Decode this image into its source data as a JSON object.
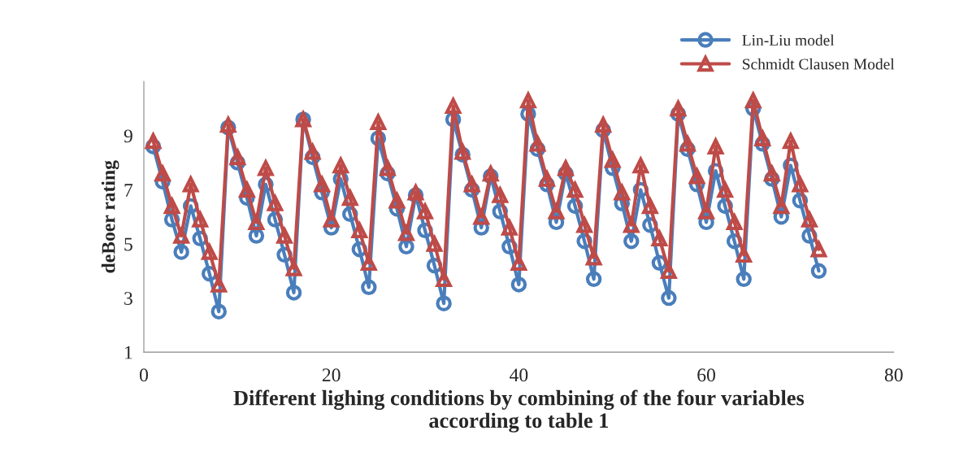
{
  "chart_data": {
    "type": "line",
    "xlabel": "Different lighing conditions by combining of the four variables\naccording to table 1",
    "ylabel": "deBoer rating",
    "x": [
      1,
      2,
      3,
      4,
      5,
      6,
      7,
      8,
      9,
      10,
      11,
      12,
      13,
      14,
      15,
      16,
      17,
      18,
      19,
      20,
      21,
      22,
      23,
      24,
      25,
      26,
      27,
      28,
      29,
      30,
      31,
      32,
      33,
      34,
      35,
      36,
      37,
      38,
      39,
      40,
      41,
      42,
      43,
      44,
      45,
      46,
      47,
      48,
      49,
      50,
      51,
      52,
      53,
      54,
      55,
      56,
      57,
      58,
      59,
      60,
      61,
      62,
      63,
      64,
      65,
      66,
      67,
      68,
      69,
      70,
      71,
      72
    ],
    "series": [
      {
        "name": "Lin-Liu model",
        "color": "#4a7ebb",
        "marker": "circle",
        "values": [
          8.6,
          7.3,
          5.9,
          4.7,
          6.4,
          5.2,
          3.9,
          2.5,
          9.3,
          8.0,
          6.7,
          5.3,
          7.2,
          5.9,
          4.6,
          3.2,
          9.6,
          8.2,
          6.9,
          5.6,
          7.4,
          6.1,
          4.8,
          3.4,
          8.9,
          7.6,
          6.3,
          4.9,
          6.8,
          5.5,
          4.2,
          2.8,
          9.6,
          8.3,
          7.0,
          5.6,
          7.5,
          6.2,
          4.9,
          3.5,
          9.8,
          8.5,
          7.2,
          5.8,
          7.6,
          6.4,
          5.1,
          3.7,
          9.2,
          7.8,
          6.5,
          5.1,
          7.0,
          5.7,
          4.3,
          3.0,
          9.8,
          8.5,
          7.2,
          5.8,
          7.7,
          6.4,
          5.1,
          3.7,
          10.0,
          8.7,
          7.4,
          6.0,
          7.9,
          6.6,
          5.3,
          4.0
        ]
      },
      {
        "name": "Schmidt Clausen Model",
        "color": "#be4b48",
        "marker": "triangle",
        "values": [
          8.8,
          7.6,
          6.4,
          5.3,
          7.2,
          5.9,
          4.7,
          3.5,
          9.4,
          8.2,
          7.0,
          5.8,
          7.8,
          6.5,
          5.3,
          4.1,
          9.6,
          8.4,
          7.2,
          5.9,
          7.9,
          6.7,
          5.5,
          4.3,
          9.5,
          7.8,
          6.6,
          5.4,
          6.9,
          6.2,
          5.0,
          3.7,
          10.1,
          8.4,
          7.2,
          6.0,
          7.6,
          6.8,
          5.6,
          4.3,
          10.3,
          8.7,
          7.4,
          6.2,
          7.8,
          7.0,
          5.7,
          4.5,
          9.4,
          8.1,
          6.9,
          5.7,
          7.9,
          6.4,
          5.2,
          4.0,
          10.0,
          8.7,
          7.5,
          6.2,
          8.6,
          7.0,
          5.8,
          4.6,
          10.3,
          8.9,
          7.6,
          6.4,
          8.8,
          7.2,
          5.9,
          4.8
        ]
      }
    ],
    "xlim": [
      0,
      80
    ],
    "xticks": [
      0,
      20,
      40,
      60,
      80
    ],
    "ylim": [
      1,
      11
    ],
    "yticks": [
      1,
      3,
      5,
      7,
      9
    ],
    "grid": false,
    "legend": "top right",
    "line_style": "solid"
  }
}
